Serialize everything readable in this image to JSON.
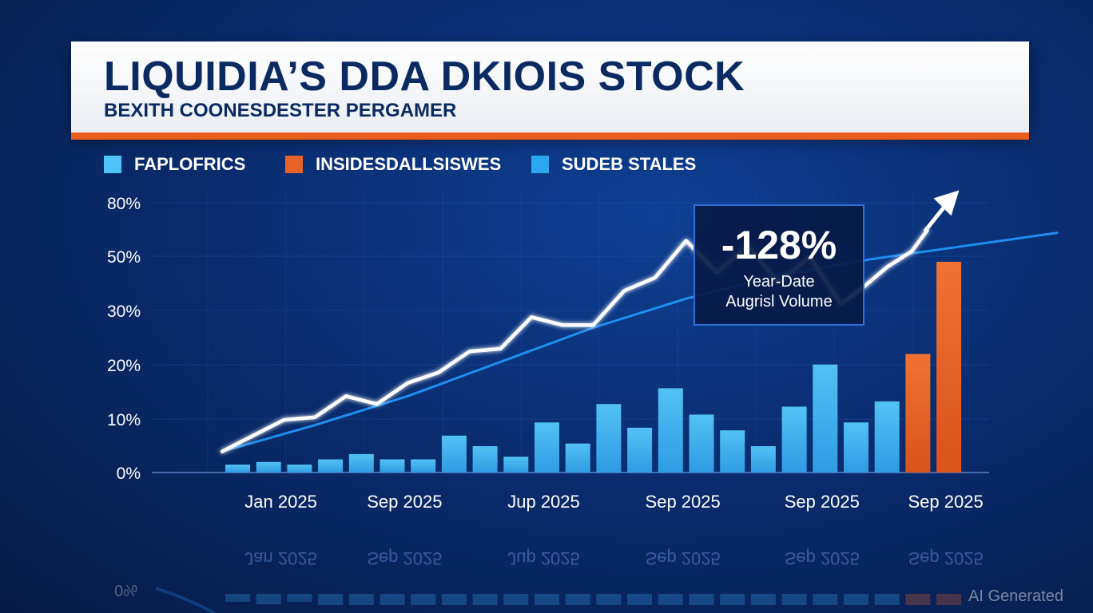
{
  "header": {
    "title": "LIQUIDIA’S DDA DKIOIS STOCK",
    "subtitle": "BEXITH COONESDESTER PERGAMER"
  },
  "legend": [
    {
      "label": "FAPLOFRICS",
      "color": "#4fc3f7"
    },
    {
      "label": "INSIDESDALLSISWES",
      "color": "#e8632a"
    },
    {
      "label": "SUDEB STALES",
      "color": "#2aa7ef"
    }
  ],
  "callout": {
    "value": "-128%",
    "line1": "Year-Date",
    "line2": "Augrisl Volume"
  },
  "watermark": "AI Generated",
  "colors": {
    "bar_blue": "#49b8ee",
    "bar_orange": "#e8632a",
    "trend_line": "#1e8ff0",
    "price_line": "#ffffff"
  },
  "chart_data": {
    "type": "bar",
    "title": "LIQUIDIA’S DDA DKIOIS STOCK",
    "y_ticks": [
      "80%",
      "50%",
      "30%",
      "20%",
      "10%",
      "0%"
    ],
    "x_tick_labels": [
      "Jan 2025",
      "Sep 2025",
      "Jup 2025",
      "Sep 2025",
      "Sep 2025",
      "Sep 2025"
    ],
    "x_tick_positions": [
      1.5,
      5.5,
      10,
      14.5,
      19,
      23
    ],
    "ylim_slots": [
      0,
      5
    ],
    "bars": {
      "values": [
        0.15,
        0.2,
        0.15,
        0.25,
        0.35,
        0.25,
        0.25,
        0.7,
        0.5,
        0.3,
        0.95,
        0.55,
        1.3,
        0.85,
        1.6,
        1.1,
        0.8,
        0.5,
        1.25,
        2.05,
        0.95,
        1.35,
        2.25,
        4.0
      ],
      "highlight": [
        false,
        false,
        false,
        false,
        false,
        false,
        false,
        false,
        false,
        false,
        false,
        false,
        false,
        false,
        false,
        false,
        false,
        false,
        false,
        false,
        false,
        false,
        true,
        true
      ]
    },
    "series": [
      {
        "name": "price",
        "x": [
          -0.5,
          0.5,
          1.5,
          2.5,
          3.5,
          4.5,
          5.5,
          6.5,
          7.5,
          8.5,
          9.5,
          10.5,
          11.5,
          12.5,
          13.5,
          14.5,
          15.5,
          16.5,
          17.5,
          18.5,
          19.5,
          20.2,
          21,
          21.8,
          22.3
        ],
        "y": [
          0.4,
          0.7,
          1.0,
          1.05,
          1.45,
          1.3,
          1.7,
          1.9,
          2.3,
          2.35,
          2.95,
          2.8,
          2.8,
          3.45,
          3.7,
          4.4,
          3.8,
          4.3,
          3.6,
          4.1,
          3.2,
          3.5,
          3.9,
          4.2,
          4.6
        ]
      },
      {
        "name": "trend",
        "x": [
          -0.5,
          2.5,
          5.5,
          8.5,
          11.5,
          14.5,
          17.5,
          20.5,
          23.5,
          26.5
        ],
        "y": [
          0.4,
          0.9,
          1.45,
          2.1,
          2.75,
          3.3,
          3.75,
          4.05,
          4.3,
          4.55
        ]
      }
    ],
    "annotation": "-128%"
  }
}
